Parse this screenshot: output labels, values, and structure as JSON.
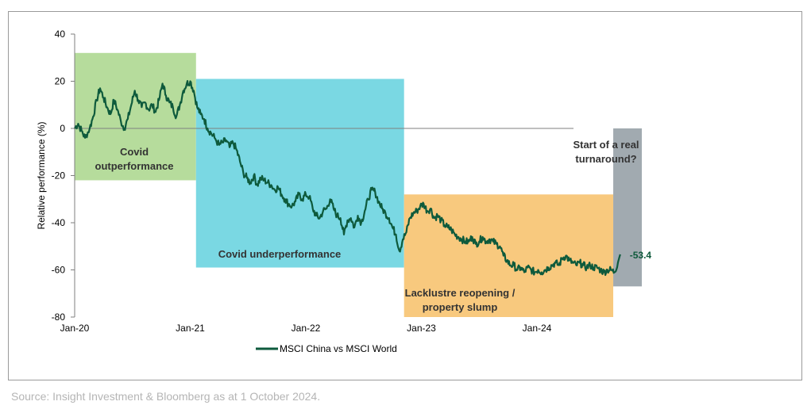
{
  "chart_data": {
    "type": "line",
    "title": "",
    "ylabel": "Relative performance (%)",
    "xlabel": "",
    "ylim": [
      -80,
      40
    ],
    "yticks": [
      40,
      20,
      0,
      -20,
      -40,
      -60,
      -80
    ],
    "xlim": [
      2020.0,
      2024.9
    ],
    "xticks": [
      {
        "label": "Jan-20",
        "x": 2020.0
      },
      {
        "label": "Jan-21",
        "x": 2021.0
      },
      {
        "label": "Jan-22",
        "x": 2022.0
      },
      {
        "label": "Jan-23",
        "x": 2023.0
      },
      {
        "label": "Jan-24",
        "x": 2024.0
      }
    ],
    "series": [
      {
        "name": "MSCI China vs MSCI World",
        "color": "#0e5a3c",
        "points": [
          [
            2020.0,
            0
          ],
          [
            2020.03,
            2
          ],
          [
            2020.06,
            -1
          ],
          [
            2020.09,
            -4
          ],
          [
            2020.13,
            0
          ],
          [
            2020.16,
            5
          ],
          [
            2020.19,
            12
          ],
          [
            2020.22,
            17
          ],
          [
            2020.25,
            13
          ],
          [
            2020.28,
            9
          ],
          [
            2020.31,
            6
          ],
          [
            2020.34,
            12
          ],
          [
            2020.37,
            8
          ],
          [
            2020.4,
            3
          ],
          [
            2020.43,
            0
          ],
          [
            2020.46,
            4
          ],
          [
            2020.49,
            10
          ],
          [
            2020.52,
            16
          ],
          [
            2020.55,
            12
          ],
          [
            2020.58,
            9
          ],
          [
            2020.61,
            11
          ],
          [
            2020.64,
            8
          ],
          [
            2020.67,
            10
          ],
          [
            2020.7,
            7
          ],
          [
            2020.73,
            12
          ],
          [
            2020.76,
            19
          ],
          [
            2020.79,
            14
          ],
          [
            2020.82,
            11
          ],
          [
            2020.85,
            9
          ],
          [
            2020.88,
            5
          ],
          [
            2020.91,
            10
          ],
          [
            2020.94,
            16
          ],
          [
            2020.97,
            19
          ],
          [
            2021.0,
            20
          ],
          [
            2021.03,
            16
          ],
          [
            2021.06,
            9
          ],
          [
            2021.09,
            6
          ],
          [
            2021.12,
            4
          ],
          [
            2021.15,
            0
          ],
          [
            2021.18,
            -2
          ],
          [
            2021.21,
            -4
          ],
          [
            2021.25,
            -7
          ],
          [
            2021.28,
            -6
          ],
          [
            2021.31,
            -5
          ],
          [
            2021.34,
            -8
          ],
          [
            2021.37,
            -6
          ],
          [
            2021.4,
            -9
          ],
          [
            2021.43,
            -14
          ],
          [
            2021.46,
            -19
          ],
          [
            2021.49,
            -21
          ],
          [
            2021.52,
            -23
          ],
          [
            2021.55,
            -20
          ],
          [
            2021.58,
            -24
          ],
          [
            2021.61,
            -21
          ],
          [
            2021.64,
            -22
          ],
          [
            2021.67,
            -23
          ],
          [
            2021.7,
            -24
          ],
          [
            2021.73,
            -26
          ],
          [
            2021.76,
            -25
          ],
          [
            2021.79,
            -28
          ],
          [
            2021.82,
            -30
          ],
          [
            2021.85,
            -32
          ],
          [
            2021.88,
            -33
          ],
          [
            2021.91,
            -31
          ],
          [
            2021.94,
            -28
          ],
          [
            2021.97,
            -30
          ],
          [
            2022.0,
            -28
          ],
          [
            2022.03,
            -29
          ],
          [
            2022.06,
            -34
          ],
          [
            2022.09,
            -37
          ],
          [
            2022.12,
            -38
          ],
          [
            2022.15,
            -35
          ],
          [
            2022.18,
            -34
          ],
          [
            2022.21,
            -30
          ],
          [
            2022.24,
            -34
          ],
          [
            2022.27,
            -37
          ],
          [
            2022.3,
            -38
          ],
          [
            2022.33,
            -45
          ],
          [
            2022.36,
            -39
          ],
          [
            2022.39,
            -38
          ],
          [
            2022.42,
            -42
          ],
          [
            2022.45,
            -37
          ],
          [
            2022.48,
            -40
          ],
          [
            2022.51,
            -35
          ],
          [
            2022.54,
            -30
          ],
          [
            2022.57,
            -26
          ],
          [
            2022.6,
            -27
          ],
          [
            2022.63,
            -31
          ],
          [
            2022.66,
            -34
          ],
          [
            2022.69,
            -36
          ],
          [
            2022.72,
            -38
          ],
          [
            2022.75,
            -42
          ],
          [
            2022.78,
            -45
          ],
          [
            2022.81,
            -52
          ],
          [
            2022.84,
            -47
          ],
          [
            2022.87,
            -44
          ],
          [
            2022.9,
            -38
          ],
          [
            2022.93,
            -36
          ],
          [
            2022.96,
            -35
          ],
          [
            2022.99,
            -33
          ],
          [
            2023.02,
            -32
          ],
          [
            2023.05,
            -35
          ],
          [
            2023.08,
            -34
          ],
          [
            2023.11,
            -38
          ],
          [
            2023.14,
            -37
          ],
          [
            2023.17,
            -39
          ],
          [
            2023.2,
            -41
          ],
          [
            2023.23,
            -42
          ],
          [
            2023.26,
            -43
          ],
          [
            2023.29,
            -45
          ],
          [
            2023.32,
            -46
          ],
          [
            2023.35,
            -47
          ],
          [
            2023.38,
            -48
          ],
          [
            2023.41,
            -48
          ],
          [
            2023.44,
            -46
          ],
          [
            2023.47,
            -49
          ],
          [
            2023.5,
            -48
          ],
          [
            2023.53,
            -46
          ],
          [
            2023.56,
            -48
          ],
          [
            2023.59,
            -47
          ],
          [
            2023.62,
            -48
          ],
          [
            2023.65,
            -49
          ],
          [
            2023.68,
            -50
          ],
          [
            2023.71,
            -54
          ],
          [
            2023.74,
            -56
          ],
          [
            2023.77,
            -58
          ],
          [
            2023.8,
            -58
          ],
          [
            2023.83,
            -60
          ],
          [
            2023.86,
            -59
          ],
          [
            2023.89,
            -61
          ],
          [
            2023.92,
            -59
          ],
          [
            2023.95,
            -60
          ],
          [
            2023.98,
            -61
          ],
          [
            2024.01,
            -60
          ],
          [
            2024.04,
            -61
          ],
          [
            2024.07,
            -60
          ],
          [
            2024.1,
            -59
          ],
          [
            2024.13,
            -58
          ],
          [
            2024.16,
            -57
          ],
          [
            2024.19,
            -58
          ],
          [
            2024.22,
            -55
          ],
          [
            2024.25,
            -54
          ],
          [
            2024.28,
            -56
          ],
          [
            2024.31,
            -57
          ],
          [
            2024.34,
            -58
          ],
          [
            2024.37,
            -57
          ],
          [
            2024.4,
            -58
          ],
          [
            2024.43,
            -59
          ],
          [
            2024.46,
            -58
          ],
          [
            2024.49,
            -59
          ],
          [
            2024.52,
            -59
          ],
          [
            2024.55,
            -60
          ],
          [
            2024.58,
            -61
          ],
          [
            2024.61,
            -60
          ],
          [
            2024.64,
            -60
          ],
          [
            2024.67,
            -61
          ],
          [
            2024.7,
            -57
          ],
          [
            2024.72,
            -53.4
          ]
        ]
      }
    ],
    "end_label": "-53.4",
    "regions": [
      {
        "label_lines": [
          "Covid",
          "outperformance"
        ],
        "x0": 2020.0,
        "x1": 2021.05,
        "y0": -22,
        "y1": 32,
        "color": "#b6dc9c"
      },
      {
        "label_lines": [
          "Covid underperformance"
        ],
        "x0": 2021.05,
        "x1": 2022.85,
        "y0": -59,
        "y1": 21,
        "color": "#7ad8e3"
      },
      {
        "label_lines": [
          "Lacklustre reopening /",
          "property slump"
        ],
        "x0": 2022.85,
        "x1": 2024.66,
        "y0": -80,
        "y1": -28,
        "color": "#f8c97e"
      },
      {
        "label_lines": [
          "Start of a real",
          "turnaround?"
        ],
        "x0": 2024.66,
        "x1": 2025.5,
        "y0": -67,
        "y1": 0,
        "color": "#a1aab0"
      }
    ],
    "legend": {
      "label": "MSCI China vs MSCI World",
      "position": "bottom-center"
    }
  },
  "source": "Source: Insight Investment & Bloomberg as at 1 October 2024."
}
